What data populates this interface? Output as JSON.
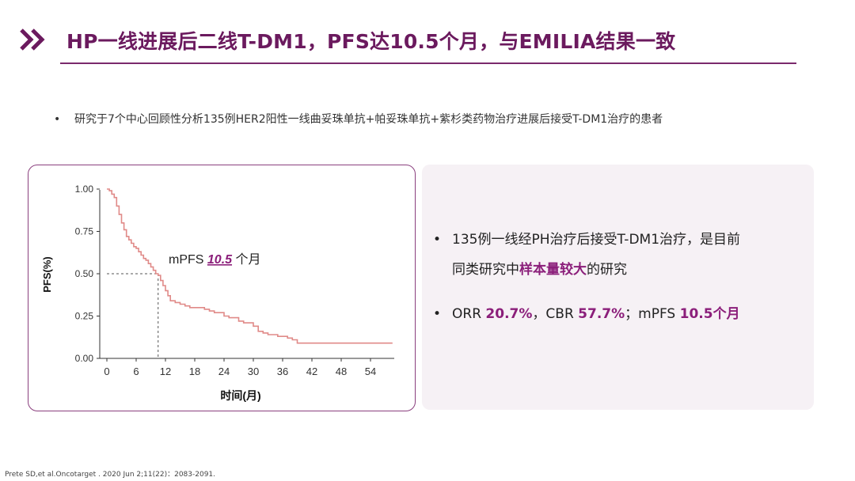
{
  "header": {
    "title": "HP一线进展后二线T-DM1，PFS达10.5个月，与EMILIA结果一致",
    "icon": "double-chevron-icon",
    "accent_color": "#6b1a5e"
  },
  "intro": {
    "bullet": "•",
    "text": "研究于7个中心回顾性分析135例HER2阳性一线曲妥珠单抗+帕妥珠单抗+紫杉类药物治疗进展后接受T-DM1治疗的患者"
  },
  "chart_data": {
    "type": "line",
    "xlabel": "时间(月)",
    "ylabel": "PFS(%)",
    "xlim": [
      0,
      60
    ],
    "ylim": [
      0,
      1
    ],
    "xticks": [
      "0",
      "6",
      "12",
      "18",
      "24",
      "30",
      "36",
      "42",
      "48",
      "54"
    ],
    "yticks": [
      "0.00",
      "0.25",
      "0.50",
      "0.75",
      "1.00"
    ],
    "annotation": {
      "prefix": "mPFS ",
      "value": "10.5",
      "suffix": " 个月",
      "median_x": 10.5,
      "median_y": 0.5
    },
    "line_color": "#e08a88",
    "series": [
      {
        "x": [
          0,
          0.5,
          1,
          1.5,
          2,
          2.5,
          3,
          3.5,
          4,
          4.5,
          5,
          5.5,
          6,
          6.5,
          7,
          7.5,
          8,
          8.5,
          9,
          9.5,
          10,
          10.5,
          11,
          11.5,
          12,
          12.5,
          13,
          14,
          15,
          16,
          17,
          18,
          19,
          20,
          21,
          22,
          23,
          24,
          25,
          26,
          27,
          28,
          29,
          30,
          31,
          32,
          33,
          34,
          35,
          36,
          37,
          38,
          39,
          40,
          42,
          44,
          46,
          48,
          50,
          52,
          54,
          56,
          58.5
        ],
        "y": [
          1.0,
          0.99,
          0.97,
          0.95,
          0.9,
          0.85,
          0.8,
          0.76,
          0.72,
          0.7,
          0.68,
          0.66,
          0.65,
          0.63,
          0.61,
          0.59,
          0.58,
          0.56,
          0.54,
          0.52,
          0.5,
          0.49,
          0.46,
          0.43,
          0.4,
          0.37,
          0.34,
          0.33,
          0.32,
          0.31,
          0.3,
          0.3,
          0.3,
          0.29,
          0.28,
          0.27,
          0.27,
          0.25,
          0.24,
          0.24,
          0.22,
          0.21,
          0.21,
          0.19,
          0.16,
          0.15,
          0.14,
          0.14,
          0.13,
          0.13,
          0.12,
          0.11,
          0.09,
          0.09,
          0.09,
          0.09,
          0.09,
          0.09,
          0.09,
          0.09,
          0.09,
          0.09,
          0.09
        ]
      }
    ]
  },
  "info": {
    "bullet": "•",
    "line1": "135例一线经PH治疗后接受T-DM1治疗，是目前",
    "line2_pre": "同类研究中",
    "line2_hl": "样本量较大",
    "line2_post": "的研究",
    "orr_label": "ORR ",
    "orr_value": "20.7%",
    "cbr_sep": "，CBR ",
    "cbr_value": "57.7%",
    "mpfs_sep": "；mPFS ",
    "mpfs_value": "10.5个月",
    "highlight_color": "#8b1e7a",
    "panel_color": "#f6f1f5"
  },
  "citation": "Prete SD,et al.Oncotarget . 2020 Jun 2;11(22)：2083-2091."
}
